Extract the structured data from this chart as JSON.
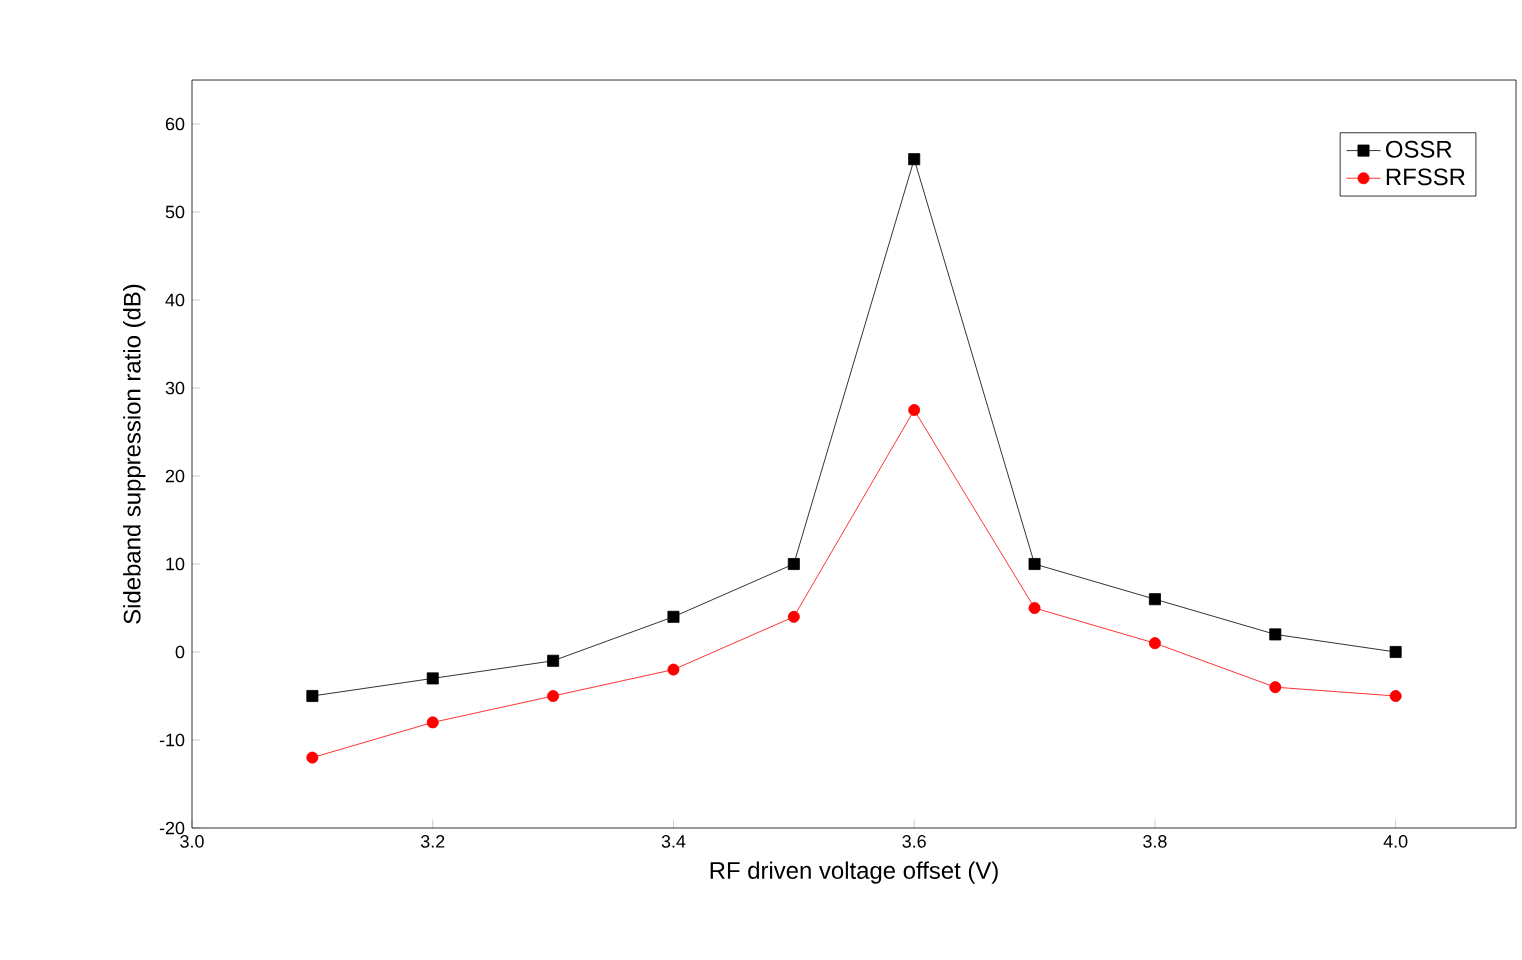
{
  "chart_data": {
    "type": "line",
    "xlabel": "RF driven voltage offset (V)",
    "ylabel": "Sideband suppression ratio (dB)",
    "x": [
      3.1,
      3.2,
      3.3,
      3.4,
      3.5,
      3.6,
      3.7,
      3.8,
      3.9,
      4.0
    ],
    "series": [
      {
        "name": "OSSR",
        "color": "#000000",
        "marker": "square",
        "values": [
          -5,
          -3,
          -1,
          4,
          10,
          56,
          10,
          6,
          2,
          0
        ]
      },
      {
        "name": "RFSSR",
        "color": "#ff0000",
        "marker": "circle",
        "values": [
          -12,
          -8,
          -5,
          -2,
          4,
          27.5,
          5,
          1,
          -4,
          -5
        ]
      }
    ],
    "xlim": [
      3.0,
      4.1
    ],
    "xticks": [
      {
        "value": 3,
        "label": "3.0"
      },
      3.2,
      3.4,
      3.6,
      3.8,
      {
        "value": 4,
        "label": "4.0"
      }
    ],
    "ylim": [
      -20,
      65
    ],
    "yticks": [
      -20,
      -10,
      0,
      10,
      20,
      30,
      40,
      50,
      60
    ],
    "grid": false,
    "legend": "top right",
    "line_style": "solid"
  }
}
